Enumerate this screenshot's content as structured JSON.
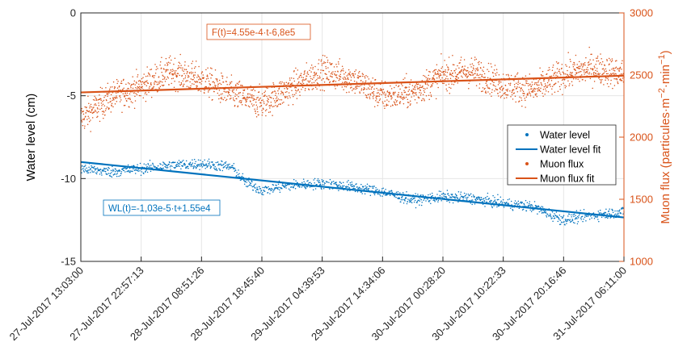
{
  "chart_data": {
    "type": "scatter",
    "colors": {
      "water": "#0072BD",
      "muon": "#D95319",
      "grid": "#e6e6e6",
      "axis": "#262626"
    },
    "x_start": "2017-07-27 13:03:00",
    "x_end": "2017-07-31 06:11:00",
    "x_tick_labels": [
      "27-Jul-2017 13:03:00",
      "27-Jul-2017 22:57:13",
      "28-Jul-2017 08:51:26",
      "28-Jul-2017 18:45:40",
      "29-Jul-2017 04:39:53",
      "29-Jul-2017 14:34:06",
      "30-Jul-2017 00:28:20",
      "30-Jul-2017 10:22:33",
      "30-Jul-2017 20:16:46",
      "31-Jul-2017 06:11:00"
    ],
    "y_left": {
      "label": "Water level (cm)",
      "ylim": [
        -15,
        0
      ],
      "ticks": [
        -15,
        -10,
        -5,
        0
      ]
    },
    "y_right": {
      "label_parts": [
        "Muon flux (particules·m",
        "−2",
        "·min",
        "−1",
        ")"
      ],
      "ylim": [
        1000,
        3000
      ],
      "ticks": [
        1000,
        1500,
        2000,
        2500,
        3000
      ]
    },
    "grid": true,
    "series": [
      {
        "name": "Water level",
        "axis": "left",
        "style": "points",
        "x": [
          "2017-07-27 13:03:00",
          "2017-07-27 18:00:00",
          "2017-07-27 22:57:00",
          "2017-07-28 03:54:00",
          "2017-07-28 08:51:00",
          "2017-07-28 13:48:00",
          "2017-07-28 16:00:00",
          "2017-07-28 18:45:00",
          "2017-07-28 23:42:00",
          "2017-07-29 04:39:00",
          "2017-07-29 09:36:00",
          "2017-07-29 14:34:00",
          "2017-07-29 19:31:00",
          "2017-07-30 00:28:00",
          "2017-07-30 05:25:00",
          "2017-07-30 10:22:00",
          "2017-07-30 15:19:00",
          "2017-07-30 20:16:00",
          "2017-07-31 01:13:00",
          "2017-07-31 06:11:00"
        ],
        "values": [
          -9.4,
          -9.6,
          -9.4,
          -9.2,
          -9.1,
          -9.3,
          -10.2,
          -10.7,
          -10.4,
          -10.3,
          -10.5,
          -10.8,
          -11.3,
          -11.1,
          -11.2,
          -11.5,
          -11.7,
          -12.5,
          -12.2,
          -12.0
        ]
      },
      {
        "name": "Water level fit",
        "axis": "left",
        "style": "line",
        "x": [
          "2017-07-27 13:03:00",
          "2017-07-31 06:11:00"
        ],
        "values": [
          -9.0,
          -12.35
        ]
      },
      {
        "name": "Muon flux",
        "axis": "right",
        "style": "points",
        "x": [
          "2017-07-27 13:03:00",
          "2017-07-27 18:00:00",
          "2017-07-27 22:57:00",
          "2017-07-28 03:54:00",
          "2017-07-28 08:51:00",
          "2017-07-28 13:48:00",
          "2017-07-28 18:45:00",
          "2017-07-28 23:42:00",
          "2017-07-29 04:39:00",
          "2017-07-29 09:36:00",
          "2017-07-29 14:34:00",
          "2017-07-29 19:31:00",
          "2017-07-30 00:28:00",
          "2017-07-30 05:25:00",
          "2017-07-30 10:22:00",
          "2017-07-30 15:19:00",
          "2017-07-30 20:16:00",
          "2017-07-31 01:13:00",
          "2017-07-31 06:11:00"
        ],
        "values": [
          2150,
          2320,
          2410,
          2530,
          2460,
          2350,
          2270,
          2400,
          2530,
          2470,
          2330,
          2360,
          2500,
          2530,
          2420,
          2380,
          2500,
          2560,
          2500
        ],
        "spread": 110
      },
      {
        "name": "Muon flux fit",
        "axis": "right",
        "style": "line",
        "x": [
          "2017-07-27 13:03:00",
          "2017-07-31 06:11:00"
        ],
        "values": [
          2360,
          2495
        ]
      }
    ],
    "annotations": [
      {
        "text": "F(t)=4.55e-4·t-6,8e5",
        "series": "Muon flux"
      },
      {
        "text": "WL(t)=-1,03e-5·t+1.55e4",
        "series": "Water level"
      }
    ],
    "legend_position": "right"
  }
}
